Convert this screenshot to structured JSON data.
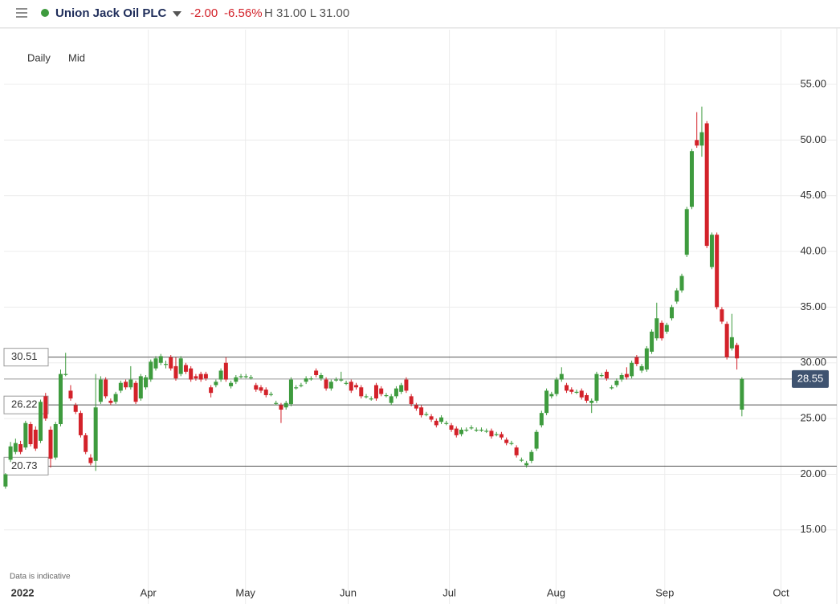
{
  "header": {
    "title": "Union Jack Oil PLC",
    "change": "-2.00",
    "change_pct": "-6.56%",
    "high_low": "H 31.00 L 31.00"
  },
  "chart_data": {
    "type": "candlestick",
    "toolbar": [
      "Daily",
      "Mid"
    ],
    "note": "Data is indicative",
    "up_color": "#3e9b3e",
    "down_color": "#d3222a",
    "grid": true,
    "ylim": [
      10.3,
      59.9
    ],
    "yticks": [
      {
        "value": 15,
        "label": "15.00"
      },
      {
        "value": 20,
        "label": "20.00"
      },
      {
        "value": 25,
        "label": "25.00"
      },
      {
        "value": 30,
        "label": "30.00"
      },
      {
        "value": 35,
        "label": "35.00"
      },
      {
        "value": 40,
        "label": "40.00"
      },
      {
        "value": 45,
        "label": "45.00"
      },
      {
        "value": 50,
        "label": "50.00"
      },
      {
        "value": 55,
        "label": "55.00"
      }
    ],
    "xlim": [
      -0.3,
      155.2
    ],
    "xticks": [
      {
        "value": 3.4,
        "label": "2022"
      },
      {
        "value": 28.5,
        "label": "Apr"
      },
      {
        "value": 47.9,
        "label": "May"
      },
      {
        "value": 68.4,
        "label": "Jun"
      },
      {
        "value": 88.6,
        "label": "Jul"
      },
      {
        "value": 109.9,
        "label": "Aug"
      },
      {
        "value": 131.6,
        "label": "Sep"
      },
      {
        "value": 154.8,
        "label": "Oct"
      }
    ],
    "levels": [
      30.51,
      26.22,
      20.73
    ],
    "last_price": 28.55,
    "values": [
      [
        18.9,
        20.1,
        18.7,
        20.0
      ],
      [
        21.3,
        22.9,
        21.1,
        22.5
      ],
      [
        22.0,
        23.2,
        21.8,
        22.8
      ],
      [
        22.7,
        23.0,
        21.8,
        22.0
      ],
      [
        22.4,
        24.8,
        22.2,
        24.6
      ],
      [
        24.5,
        24.7,
        22.5,
        22.7
      ],
      [
        24.0,
        24.3,
        22.1,
        22.3
      ],
      [
        23.0,
        26.7,
        22.8,
        26.5
      ],
      [
        27.0,
        27.3,
        24.8,
        25.0
      ],
      [
        24.0,
        24.3,
        20.6,
        21.4
      ],
      [
        21.5,
        24.7,
        21.3,
        24.5
      ],
      [
        24.5,
        29.4,
        24.3,
        29.0
      ],
      [
        29.0,
        30.9,
        28.8,
        29.0
      ],
      [
        27.5,
        28.0,
        26.6,
        26.8
      ],
      [
        26.2,
        26.4,
        25.4,
        25.6
      ],
      [
        25.5,
        25.7,
        23.3,
        23.5
      ],
      [
        23.5,
        23.7,
        21.8,
        22.0
      ],
      [
        21.5,
        21.8,
        20.8,
        21.0
      ],
      [
        21.2,
        29.0,
        20.3,
        26.0
      ],
      [
        26.5,
        28.8,
        26.3,
        28.5
      ],
      [
        28.5,
        28.7,
        26.8,
        27.0
      ],
      [
        26.6,
        26.8,
        26.2,
        26.4
      ],
      [
        26.5,
        27.4,
        26.3,
        27.2
      ],
      [
        27.5,
        28.4,
        27.3,
        28.2
      ],
      [
        28.3,
        28.5,
        27.6,
        27.8
      ],
      [
        27.8,
        29.7,
        27.6,
        28.5
      ],
      [
        28.2,
        28.4,
        26.3,
        26.5
      ],
      [
        26.8,
        29.0,
        26.6,
        28.8
      ],
      [
        27.8,
        28.9,
        27.6,
        28.7
      ],
      [
        28.5,
        30.3,
        28.3,
        30.1
      ],
      [
        29.5,
        30.6,
        29.3,
        30.4
      ],
      [
        30.0,
        30.8,
        29.8,
        30.6
      ],
      [
        29.9,
        30.2,
        29.5,
        29.9
      ],
      [
        30.5,
        30.7,
        29.3,
        29.5
      ],
      [
        29.7,
        30.5,
        28.4,
        28.6
      ],
      [
        29.0,
        30.6,
        28.8,
        30.4
      ],
      [
        29.8,
        30.0,
        29.0,
        29.2
      ],
      [
        29.5,
        29.7,
        28.3,
        28.5
      ],
      [
        28.8,
        29.0,
        28.4,
        28.6
      ],
      [
        29.0,
        29.2,
        28.3,
        28.5
      ],
      [
        29.0,
        29.2,
        28.4,
        28.6
      ],
      [
        27.8,
        28.0,
        26.9,
        27.3
      ],
      [
        28.0,
        28.5,
        27.8,
        28.3
      ],
      [
        28.5,
        29.5,
        28.3,
        29.3
      ],
      [
        30.0,
        30.5,
        28.3,
        28.5
      ],
      [
        27.9,
        28.4,
        27.7,
        28.2
      ],
      [
        28.3,
        28.9,
        28.1,
        28.7
      ],
      [
        28.8,
        29.0,
        28.6,
        28.8
      ],
      [
        28.8,
        29.0,
        28.6,
        28.8
      ],
      [
        28.7,
        28.9,
        28.5,
        28.7
      ],
      [
        28.0,
        28.2,
        27.4,
        27.6
      ],
      [
        27.8,
        28.0,
        27.3,
        27.5
      ],
      [
        27.6,
        27.8,
        26.9,
        27.1
      ],
      [
        27.2,
        27.4,
        27.0,
        27.2
      ],
      [
        26.4,
        26.6,
        26.2,
        26.4
      ],
      [
        26.2,
        26.4,
        24.6,
        25.8
      ],
      [
        26.0,
        26.6,
        25.8,
        26.4
      ],
      [
        26.3,
        28.7,
        26.1,
        28.5
      ],
      [
        27.8,
        28.0,
        27.6,
        27.8
      ],
      [
        28.0,
        28.2,
        27.8,
        28.0
      ],
      [
        28.3,
        28.8,
        28.1,
        28.6
      ],
      [
        28.6,
        28.8,
        28.4,
        28.6
      ],
      [
        29.3,
        29.5,
        28.7,
        28.9
      ],
      [
        28.6,
        29.1,
        28.4,
        28.9
      ],
      [
        28.5,
        28.7,
        27.5,
        27.7
      ],
      [
        27.7,
        28.5,
        27.5,
        28.3
      ],
      [
        28.5,
        28.7,
        28.3,
        28.5
      ],
      [
        28.5,
        29.2,
        28.3,
        28.5
      ],
      [
        28.2,
        28.4,
        28.0,
        28.2
      ],
      [
        28.3,
        28.5,
        27.3,
        27.5
      ],
      [
        28.0,
        28.2,
        27.6,
        27.8
      ],
      [
        27.8,
        28.0,
        26.8,
        27.0
      ],
      [
        27.0,
        27.2,
        26.8,
        27.0
      ],
      [
        26.8,
        27.0,
        26.6,
        26.8
      ],
      [
        28.0,
        28.2,
        26.6,
        26.8
      ],
      [
        27.7,
        27.9,
        27.0,
        27.2
      ],
      [
        27.1,
        27.3,
        26.9,
        27.1
      ],
      [
        26.4,
        27.2,
        26.2,
        27.0
      ],
      [
        27.0,
        27.9,
        26.8,
        27.7
      ],
      [
        27.4,
        28.2,
        27.2,
        28.0
      ],
      [
        28.5,
        28.7,
        27.3,
        27.5
      ],
      [
        27.0,
        27.2,
        26.1,
        26.3
      ],
      [
        26.2,
        26.4,
        25.7,
        25.9
      ],
      [
        26.0,
        26.2,
        25.1,
        25.3
      ],
      [
        25.4,
        25.6,
        25.2,
        25.4
      ],
      [
        25.2,
        25.4,
        24.7,
        24.9
      ],
      [
        24.8,
        25.0,
        24.2,
        24.4
      ],
      [
        24.7,
        25.3,
        24.5,
        25.1
      ],
      [
        24.6,
        24.8,
        24.4,
        24.6
      ],
      [
        24.4,
        24.6,
        23.8,
        24.0
      ],
      [
        24.1,
        24.3,
        23.3,
        23.5
      ],
      [
        23.6,
        24.2,
        23.4,
        24.0
      ],
      [
        24.0,
        24.2,
        23.8,
        24.0
      ],
      [
        24.2,
        24.4,
        24.0,
        24.2
      ],
      [
        24.0,
        24.2,
        23.8,
        24.0
      ],
      [
        24.0,
        24.2,
        23.8,
        24.0
      ],
      [
        23.9,
        24.1,
        23.7,
        23.9
      ],
      [
        23.9,
        24.1,
        23.2,
        23.4
      ],
      [
        23.6,
        23.8,
        23.4,
        23.6
      ],
      [
        23.6,
        23.8,
        23.1,
        23.3
      ],
      [
        23.1,
        23.3,
        22.6,
        22.8
      ],
      [
        22.8,
        23.0,
        22.6,
        22.8
      ],
      [
        22.4,
        22.6,
        21.5,
        21.7
      ],
      [
        21.3,
        21.5,
        21.1,
        21.3
      ],
      [
        20.8,
        21.2,
        20.6,
        21.0
      ],
      [
        21.2,
        22.2,
        21.0,
        22.0
      ],
      [
        22.3,
        24.0,
        22.1,
        23.8
      ],
      [
        24.4,
        25.7,
        24.2,
        25.5
      ],
      [
        25.5,
        27.7,
        25.3,
        27.5
      ],
      [
        27.0,
        27.4,
        26.8,
        27.2
      ],
      [
        27.2,
        28.7,
        27.0,
        28.5
      ],
      [
        28.5,
        29.6,
        28.3,
        29.0
      ],
      [
        28.0,
        28.2,
        27.3,
        27.5
      ],
      [
        27.6,
        27.8,
        27.2,
        27.4
      ],
      [
        27.4,
        27.6,
        27.2,
        27.4
      ],
      [
        27.5,
        27.7,
        26.7,
        26.9
      ],
      [
        27.1,
        27.3,
        26.4,
        26.6
      ],
      [
        26.4,
        26.8,
        25.5,
        26.6
      ],
      [
        26.6,
        29.2,
        26.4,
        29.0
      ],
      [
        28.9,
        29.1,
        28.7,
        28.9
      ],
      [
        29.2,
        29.4,
        28.4,
        28.6
      ],
      [
        27.8,
        28.0,
        27.6,
        27.8
      ],
      [
        28.0,
        28.6,
        27.8,
        28.4
      ],
      [
        28.5,
        29.1,
        28.3,
        28.9
      ],
      [
        29.0,
        29.6,
        28.5,
        28.7
      ],
      [
        28.8,
        30.2,
        28.6,
        30.0
      ],
      [
        30.5,
        30.7,
        29.7,
        29.9
      ],
      [
        29.3,
        29.9,
        29.1,
        29.7
      ],
      [
        29.4,
        31.5,
        29.2,
        31.3
      ],
      [
        31.0,
        33.0,
        30.8,
        32.8
      ],
      [
        32.2,
        35.4,
        32.0,
        34.0
      ],
      [
        33.6,
        33.8,
        32.0,
        32.2
      ],
      [
        32.8,
        33.6,
        32.6,
        33.4
      ],
      [
        34.0,
        35.2,
        33.8,
        35.0
      ],
      [
        35.5,
        36.7,
        35.3,
        36.5
      ],
      [
        36.5,
        38.0,
        36.3,
        37.8
      ],
      [
        39.7,
        44.0,
        39.5,
        43.8
      ],
      [
        44.0,
        49.2,
        43.8,
        49.0
      ],
      [
        50.0,
        52.5,
        49.3,
        49.5
      ],
      [
        49.5,
        53.0,
        48.5,
        50.7
      ],
      [
        51.5,
        51.7,
        40.3,
        40.5
      ],
      [
        38.6,
        41.7,
        38.4,
        41.5
      ],
      [
        41.5,
        41.7,
        34.8,
        35.0
      ],
      [
        34.8,
        35.0,
        33.5,
        33.7
      ],
      [
        33.5,
        33.7,
        30.3,
        30.5
      ],
      [
        31.3,
        34.4,
        31.1,
        32.3
      ],
      [
        31.6,
        31.8,
        29.4,
        30.4
      ],
      [
        25.8,
        28.7,
        25.2,
        28.55
      ]
    ]
  }
}
